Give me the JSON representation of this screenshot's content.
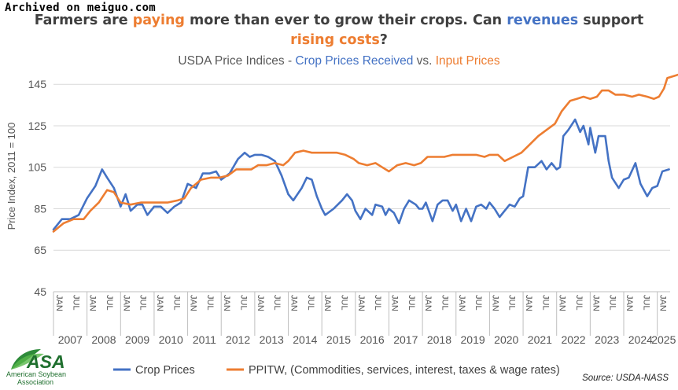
{
  "watermark": "Archived on meiguo.com",
  "title": {
    "line1": [
      {
        "text": "Farmers are ",
        "color": "#3f3f3f"
      },
      {
        "text": "paying",
        "color": "#ed7d31"
      },
      {
        "text": " more than ever to grow their crops. Can ",
        "color": "#3f3f3f"
      },
      {
        "text": "revenues",
        "color": "#4472c4"
      },
      {
        "text": " support",
        "color": "#3f3f3f"
      }
    ],
    "line2": [
      {
        "text": "rising costs",
        "color": "#ed7d31"
      },
      {
        "text": "?",
        "color": "#3f3f3f"
      }
    ]
  },
  "subtitle": [
    {
      "text": "USDA Price Indices - ",
      "color": "#595959"
    },
    {
      "text": "Crop Prices Received",
      "color": "#4472c4"
    },
    {
      "text": " vs. ",
      "color": "#595959"
    },
    {
      "text": "Input Prices",
      "color": "#ed7d31"
    }
  ],
  "logo": {
    "text": "ASA",
    "line1": "American Soybean",
    "line2": "Association"
  },
  "source": "Source: USDA-NASS",
  "colors": {
    "crop": "#4472c4",
    "input": "#ed7d31",
    "grid": "#d9d9d9"
  },
  "chart_data": {
    "type": "line",
    "ylabel": "Price Index, 2011 = 100",
    "ylim": [
      45,
      150
    ],
    "yticks": [
      45,
      65,
      85,
      105,
      125,
      145
    ],
    "x_start": "2007-01",
    "x_end": "2025-05",
    "month_tick_labels": [
      "JAN",
      "JUL"
    ],
    "year_labels": [
      "2007",
      "2008",
      "2009",
      "2010",
      "2011",
      "2012",
      "2013",
      "2014",
      "2015",
      "2016",
      "2017",
      "2018",
      "2019",
      "2020",
      "2021",
      "2022",
      "2023",
      "2024",
      "2025"
    ],
    "series": [
      {
        "name": "Crop Prices",
        "color": "#4472c4",
        "points": [
          [
            2007.0,
            75
          ],
          [
            2007.25,
            80
          ],
          [
            2007.5,
            80
          ],
          [
            2007.75,
            82
          ],
          [
            2008.0,
            90
          ],
          [
            2008.25,
            96
          ],
          [
            2008.45,
            104
          ],
          [
            2008.6,
            100
          ],
          [
            2008.8,
            95
          ],
          [
            2009.0,
            86
          ],
          [
            2009.15,
            92
          ],
          [
            2009.3,
            84
          ],
          [
            2009.5,
            87
          ],
          [
            2009.65,
            87
          ],
          [
            2009.8,
            82
          ],
          [
            2010.0,
            86
          ],
          [
            2010.2,
            86
          ],
          [
            2010.4,
            83
          ],
          [
            2010.6,
            86
          ],
          [
            2010.8,
            88
          ],
          [
            2011.0,
            97
          ],
          [
            2011.25,
            95
          ],
          [
            2011.45,
            102
          ],
          [
            2011.65,
            102
          ],
          [
            2011.85,
            103
          ],
          [
            2012.0,
            99
          ],
          [
            2012.25,
            102
          ],
          [
            2012.5,
            109
          ],
          [
            2012.7,
            112
          ],
          [
            2012.85,
            110
          ],
          [
            2013.0,
            111
          ],
          [
            2013.2,
            111
          ],
          [
            2013.4,
            110
          ],
          [
            2013.6,
            108
          ],
          [
            2013.8,
            101
          ],
          [
            2014.0,
            92
          ],
          [
            2014.15,
            89
          ],
          [
            2014.4,
            95
          ],
          [
            2014.55,
            100
          ],
          [
            2014.7,
            99
          ],
          [
            2014.85,
            91
          ],
          [
            2015.0,
            85
          ],
          [
            2015.1,
            82
          ],
          [
            2015.35,
            85
          ],
          [
            2015.6,
            89
          ],
          [
            2015.75,
            92
          ],
          [
            2015.9,
            89
          ],
          [
            2016.0,
            84
          ],
          [
            2016.15,
            80
          ],
          [
            2016.3,
            85
          ],
          [
            2016.5,
            82
          ],
          [
            2016.6,
            87
          ],
          [
            2016.8,
            86
          ],
          [
            2016.9,
            82
          ],
          [
            2017.0,
            85
          ],
          [
            2017.15,
            83
          ],
          [
            2017.3,
            78
          ],
          [
            2017.45,
            85
          ],
          [
            2017.6,
            89
          ],
          [
            2017.8,
            87
          ],
          [
            2017.9,
            85
          ],
          [
            2018.0,
            85
          ],
          [
            2018.1,
            88
          ],
          [
            2018.3,
            79
          ],
          [
            2018.45,
            87
          ],
          [
            2018.6,
            89
          ],
          [
            2018.75,
            89
          ],
          [
            2018.9,
            84
          ],
          [
            2019.0,
            87
          ],
          [
            2019.15,
            79
          ],
          [
            2019.3,
            85
          ],
          [
            2019.45,
            79
          ],
          [
            2019.6,
            86
          ],
          [
            2019.75,
            87
          ],
          [
            2019.9,
            85
          ],
          [
            2020.0,
            88
          ],
          [
            2020.15,
            85
          ],
          [
            2020.3,
            81
          ],
          [
            2020.45,
            84
          ],
          [
            2020.6,
            87
          ],
          [
            2020.75,
            86
          ],
          [
            2020.9,
            90
          ],
          [
            2021.0,
            91
          ],
          [
            2021.15,
            105
          ],
          [
            2021.35,
            105
          ],
          [
            2021.55,
            108
          ],
          [
            2021.7,
            104
          ],
          [
            2021.85,
            107
          ],
          [
            2022.0,
            104
          ],
          [
            2022.1,
            105
          ],
          [
            2022.2,
            120
          ],
          [
            2022.35,
            123
          ],
          [
            2022.55,
            128
          ],
          [
            2022.7,
            122
          ],
          [
            2022.8,
            125
          ],
          [
            2022.95,
            116
          ],
          [
            2023.0,
            124
          ],
          [
            2023.15,
            112
          ],
          [
            2023.25,
            120
          ],
          [
            2023.45,
            120
          ],
          [
            2023.55,
            108
          ],
          [
            2023.65,
            100
          ],
          [
            2023.85,
            95
          ],
          [
            2024.0,
            99
          ],
          [
            2024.15,
            100
          ],
          [
            2024.35,
            107
          ],
          [
            2024.5,
            97
          ],
          [
            2024.7,
            91
          ],
          [
            2024.85,
            95
          ],
          [
            2025.0,
            96
          ],
          [
            2025.15,
            103
          ],
          [
            2025.35,
            104
          ]
        ]
      },
      {
        "name": "PPITW, (Commodities, services, interest, taxes & wage rates)",
        "color": "#ed7d31",
        "points": [
          [
            2007.0,
            74
          ],
          [
            2007.3,
            78
          ],
          [
            2007.6,
            80
          ],
          [
            2007.9,
            80
          ],
          [
            2008.1,
            84
          ],
          [
            2008.35,
            88
          ],
          [
            2008.6,
            94
          ],
          [
            2008.8,
            93
          ],
          [
            2009.0,
            88
          ],
          [
            2009.3,
            87
          ],
          [
            2009.6,
            88
          ],
          [
            2009.85,
            88
          ],
          [
            2010.1,
            88
          ],
          [
            2010.4,
            88
          ],
          [
            2010.7,
            89
          ],
          [
            2010.9,
            90
          ],
          [
            2011.1,
            95
          ],
          [
            2011.4,
            99
          ],
          [
            2011.7,
            100
          ],
          [
            2011.95,
            100
          ],
          [
            2012.2,
            101
          ],
          [
            2012.45,
            104
          ],
          [
            2012.7,
            104
          ],
          [
            2012.9,
            104
          ],
          [
            2013.1,
            106
          ],
          [
            2013.35,
            106
          ],
          [
            2013.6,
            107
          ],
          [
            2013.85,
            106
          ],
          [
            2014.0,
            108
          ],
          [
            2014.2,
            112
          ],
          [
            2014.45,
            113
          ],
          [
            2014.7,
            112
          ],
          [
            2014.95,
            112
          ],
          [
            2015.2,
            112
          ],
          [
            2015.45,
            112
          ],
          [
            2015.7,
            111
          ],
          [
            2015.95,
            109
          ],
          [
            2016.1,
            107
          ],
          [
            2016.35,
            106
          ],
          [
            2016.6,
            107
          ],
          [
            2016.8,
            105
          ],
          [
            2017.0,
            103
          ],
          [
            2017.25,
            106
          ],
          [
            2017.5,
            107
          ],
          [
            2017.75,
            106
          ],
          [
            2017.95,
            107
          ],
          [
            2018.15,
            110
          ],
          [
            2018.4,
            110
          ],
          [
            2018.65,
            110
          ],
          [
            2018.9,
            111
          ],
          [
            2019.1,
            111
          ],
          [
            2019.35,
            111
          ],
          [
            2019.6,
            111
          ],
          [
            2019.85,
            110
          ],
          [
            2020.0,
            111
          ],
          [
            2020.25,
            111
          ],
          [
            2020.45,
            108
          ],
          [
            2020.7,
            110
          ],
          [
            2020.95,
            112
          ],
          [
            2021.2,
            116
          ],
          [
            2021.45,
            120
          ],
          [
            2021.7,
            123
          ],
          [
            2021.95,
            126
          ],
          [
            2022.15,
            132
          ],
          [
            2022.4,
            137
          ],
          [
            2022.6,
            138
          ],
          [
            2022.8,
            139
          ],
          [
            2023.0,
            138
          ],
          [
            2023.2,
            139
          ],
          [
            2023.35,
            142
          ],
          [
            2023.55,
            142
          ],
          [
            2023.75,
            140
          ],
          [
            2024.0,
            140
          ],
          [
            2024.25,
            139
          ],
          [
            2024.45,
            140
          ],
          [
            2024.7,
            139
          ],
          [
            2024.9,
            138
          ],
          [
            2025.05,
            139
          ],
          [
            2025.2,
            143
          ],
          [
            2025.3,
            148
          ],
          [
            2025.5,
            149
          ],
          [
            2025.7,
            150
          ]
        ]
      }
    ]
  }
}
